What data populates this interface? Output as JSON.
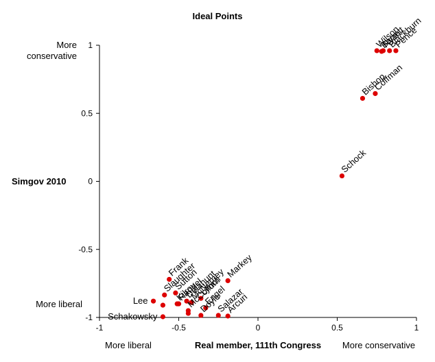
{
  "chart_data": {
    "type": "scatter",
    "title": "Ideal Points",
    "xlabel": "Real member, 111th Congress",
    "ylabel": "Simgov 2010",
    "xlim": [
      -1,
      1
    ],
    "ylim": [
      -1,
      1
    ],
    "x_ticks": [
      "-1",
      "-0.5",
      "0",
      "0.5",
      "1"
    ],
    "y_ticks": [
      "1",
      "0.5",
      "0",
      "-0.5",
      "-1"
    ],
    "x_annotations": {
      "left": "More liberal",
      "right": "More conservative"
    },
    "y_annotations": {
      "top": "More\nconservative",
      "bottom": "More liberal"
    },
    "point_color": "#dd0000",
    "points": [
      {
        "name": "Wilson",
        "x": 0.75,
        "y": 0.96
      },
      {
        "name": "Barrett",
        "x": 0.78,
        "y": 0.955
      },
      {
        "name": "Ryan",
        "x": 0.79,
        "y": 0.96
      },
      {
        "name": "Blackburn",
        "x": 0.83,
        "y": 0.96
      },
      {
        "name": "Pence",
        "x": 0.87,
        "y": 0.96
      },
      {
        "name": "Bishop",
        "x": 0.66,
        "y": 0.61
      },
      {
        "name": "Coffman",
        "x": 0.74,
        "y": 0.645
      },
      {
        "name": "Schock",
        "x": 0.53,
        "y": 0.04
      },
      {
        "name": "Frank",
        "x": -0.56,
        "y": -0.72
      },
      {
        "name": "Slaughter",
        "x": -0.59,
        "y": -0.835
      },
      {
        "name": "Sutton",
        "x": -0.52,
        "y": -0.82
      },
      {
        "name": "Kilroy",
        "x": -0.51,
        "y": -0.9
      },
      {
        "name": "Rangel",
        "x": -0.5,
        "y": -0.9
      },
      {
        "name": "Delahunt",
        "x": -0.45,
        "y": -0.88
      },
      {
        "name": "McNerney",
        "x": -0.42,
        "y": -0.89
      },
      {
        "name": "McCollum",
        "x": -0.44,
        "y": -0.95
      },
      {
        "name": "Lynch",
        "x": -0.36,
        "y": -0.86
      },
      {
        "name": "Engel",
        "x": -0.33,
        "y": -0.93
      },
      {
        "name": "Doyle",
        "x": -0.36,
        "y": -0.985
      },
      {
        "name": "Markey",
        "x": -0.19,
        "y": -0.73
      },
      {
        "name": "Salazar",
        "x": -0.25,
        "y": -0.985
      },
      {
        "name": "Arcuri",
        "x": -0.19,
        "y": -0.99
      },
      {
        "name": "Lee",
        "x": -0.66,
        "y": -0.88
      },
      {
        "name": "Schakowsky",
        "x": -0.6,
        "y": -0.995
      },
      {
        "name": "",
        "x": -0.6,
        "y": -0.91
      },
      {
        "name": "",
        "x": -0.44,
        "y": -0.97
      }
    ]
  }
}
